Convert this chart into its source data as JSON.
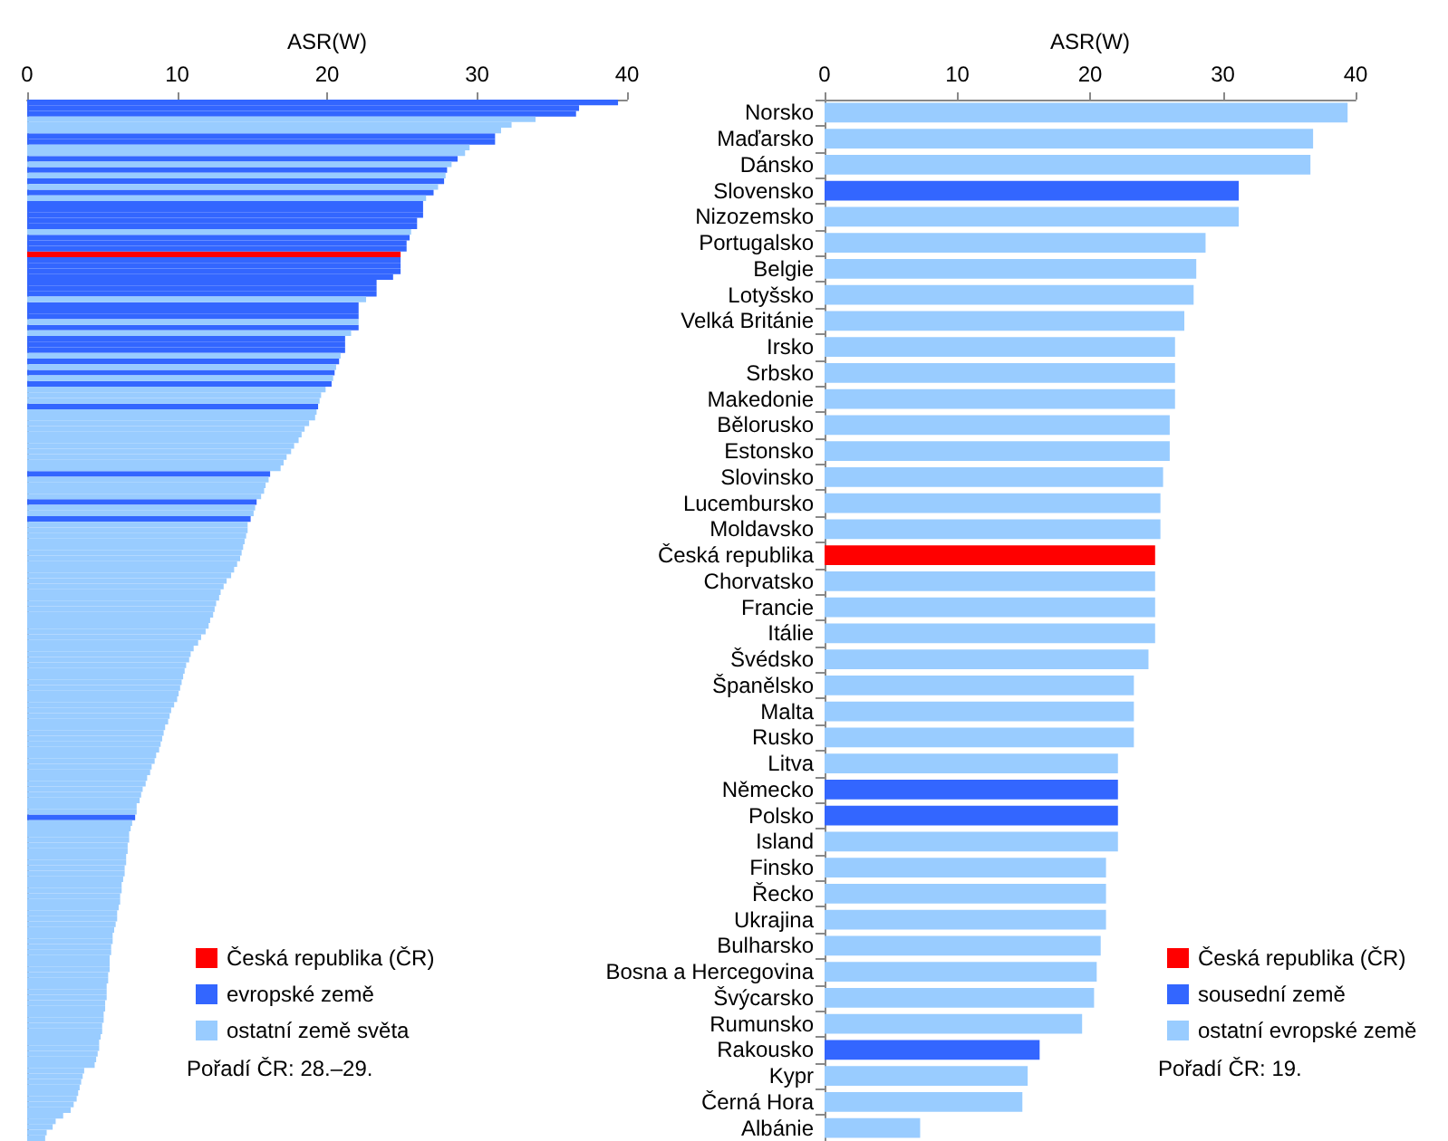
{
  "chart_data": [
    {
      "type": "bar",
      "orientation": "horizontal",
      "xlabel": "ASR(W)",
      "xlim": [
        0,
        40
      ],
      "xticks": [
        0,
        10,
        20,
        30,
        40
      ],
      "tick_labels": "x",
      "legend": "bottom",
      "categories": [
        null,
        null,
        null,
        null,
        null,
        null,
        null,
        null,
        null,
        null,
        null,
        null,
        null,
        null,
        null,
        null,
        null,
        null,
        null,
        null,
        null,
        null,
        null,
        null,
        null,
        null,
        null,
        null,
        null,
        null,
        null,
        null,
        null,
        null,
        null,
        null,
        null,
        null,
        null,
        null,
        null,
        null,
        null,
        null,
        null,
        null,
        null,
        null,
        null,
        null,
        null,
        null,
        null,
        null,
        null,
        null,
        null,
        null,
        null,
        null,
        null,
        null,
        null,
        null,
        null,
        null,
        null,
        null,
        null,
        null,
        null,
        null,
        null,
        null,
        null,
        null,
        null,
        null,
        null,
        null,
        null,
        null,
        null,
        null,
        null,
        null,
        null,
        null,
        null,
        null,
        null,
        null,
        null,
        null,
        null,
        null,
        null,
        null,
        null,
        null,
        null,
        null,
        null,
        null,
        null,
        null,
        null,
        null,
        null,
        null,
        null,
        null,
        null,
        null,
        null,
        null,
        null,
        null,
        null,
        null,
        null,
        null,
        null,
        null,
        null,
        null,
        null,
        null,
        null,
        null,
        null,
        null,
        null,
        null,
        null,
        null,
        null,
        null,
        null,
        null,
        null,
        null,
        null,
        null,
        null,
        null,
        null,
        null,
        null,
        null,
        null,
        null,
        null,
        null,
        null,
        null,
        null,
        null,
        null,
        null,
        null,
        null,
        null,
        null,
        null,
        null,
        null,
        null,
        null,
        null,
        null,
        null,
        null,
        null,
        null,
        null,
        null,
        null,
        null,
        null,
        null,
        null,
        null,
        null,
        null
      ],
      "series": [
        {
          "name": "Česká republika (ČR)",
          "color": "#ff0000",
          "values": [
            null,
            null,
            null,
            null,
            null,
            null,
            null,
            null,
            null,
            null,
            null,
            null,
            null,
            null,
            null,
            null,
            null,
            null,
            null,
            null,
            null,
            null,
            null,
            null,
            null,
            null,
            null,
            24.9,
            null,
            null,
            null,
            null,
            null,
            null,
            null,
            null,
            null,
            null,
            null,
            null,
            null,
            null,
            null,
            null,
            null,
            null,
            null,
            null,
            null,
            null,
            null,
            null,
            null,
            null,
            null,
            null,
            null,
            null,
            null,
            null,
            null,
            null,
            null,
            null,
            null,
            null,
            null,
            null,
            null,
            null,
            null,
            null,
            null,
            null,
            null,
            null,
            null,
            null,
            null,
            null,
            null,
            null,
            null,
            null,
            null,
            null,
            null,
            null,
            null,
            null,
            null,
            null,
            null,
            null,
            null,
            null,
            null,
            null,
            null,
            null,
            null,
            null,
            null,
            null,
            null,
            null,
            null,
            null,
            null,
            null,
            null,
            null,
            null,
            null,
            null,
            null,
            null,
            null,
            null,
            null,
            null,
            null,
            null,
            null,
            null,
            null,
            null,
            null,
            null,
            null,
            null,
            null,
            null,
            null,
            null,
            null,
            null,
            null,
            null,
            null,
            null,
            null,
            null,
            null,
            null,
            null,
            null,
            null,
            null,
            null,
            null,
            null,
            null,
            null,
            null,
            null,
            null,
            null,
            null,
            null,
            null,
            null,
            null,
            null,
            null,
            null,
            null,
            null,
            null,
            null,
            null,
            null,
            null,
            null,
            null,
            null,
            null,
            null,
            null,
            null,
            null,
            null,
            null,
            null,
            null
          ]
        },
        {
          "name": "evropské země",
          "color": "#3366ff",
          "values": [
            39.4,
            36.8,
            36.6,
            null,
            null,
            null,
            31.2,
            31.2,
            null,
            null,
            28.7,
            null,
            28.0,
            null,
            27.8,
            null,
            27.1,
            null,
            26.4,
            26.4,
            26.4,
            26.0,
            26.0,
            null,
            25.5,
            25.3,
            25.3,
            null,
            24.9,
            24.9,
            24.9,
            24.4,
            23.3,
            23.3,
            23.3,
            null,
            22.1,
            22.1,
            22.1,
            null,
            22.1,
            null,
            21.2,
            21.2,
            21.2,
            null,
            20.8,
            null,
            20.5,
            null,
            20.3,
            null,
            null,
            null,
            19.4,
            null,
            null,
            null,
            null,
            null,
            null,
            null,
            null,
            null,
            null,
            null,
            16.2,
            null,
            null,
            null,
            null,
            15.3,
            null,
            null,
            14.9,
            null,
            null,
            null,
            null,
            null,
            null,
            null,
            null,
            null,
            null,
            null,
            null,
            null,
            null,
            null,
            null,
            null,
            null,
            null,
            null,
            null,
            null,
            null,
            null,
            null,
            null,
            null,
            null,
            null,
            null,
            null,
            null,
            null,
            null,
            null,
            null,
            null,
            null,
            null,
            null,
            null,
            null,
            null,
            null,
            null,
            null,
            null,
            null,
            null,
            null,
            null,
            null,
            7.2,
            null,
            null,
            null,
            null,
            null,
            null,
            null,
            null,
            null,
            null,
            null,
            null,
            null,
            null,
            null,
            null,
            null,
            null,
            null,
            null,
            null,
            null,
            null,
            null,
            null,
            null,
            null,
            null,
            null,
            null,
            null,
            null,
            null,
            null,
            null,
            null,
            null,
            null,
            null,
            null,
            null,
            null,
            null,
            null,
            null,
            null,
            null,
            null,
            null,
            null,
            null,
            null,
            null,
            null,
            null,
            null,
            null
          ]
        },
        {
          "name": "ostatní země světa",
          "color": "#99ccff",
          "values": [
            null,
            null,
            null,
            33.9,
            32.3,
            31.6,
            null,
            null,
            29.5,
            29.2,
            null,
            28.3,
            null,
            27.9,
            null,
            27.4,
            null,
            26.6,
            null,
            null,
            null,
            null,
            null,
            25.6,
            null,
            null,
            null,
            null,
            null,
            null,
            null,
            null,
            null,
            null,
            null,
            22.6,
            null,
            null,
            null,
            22.1,
            null,
            21.6,
            null,
            null,
            null,
            20.9,
            null,
            20.6,
            null,
            20.4,
            null,
            19.9,
            19.6,
            19.5,
            null,
            19.3,
            19.2,
            18.8,
            18.5,
            18.3,
            18.1,
            17.8,
            17.6,
            17.3,
            17.1,
            16.9,
            null,
            16.1,
            15.9,
            15.8,
            15.6,
            null,
            15.2,
            15.1,
            null,
            14.7,
            14.7,
            14.6,
            14.5,
            14.4,
            14.3,
            14.2,
            14.0,
            13.8,
            13.6,
            13.3,
            13.1,
            12.9,
            12.8,
            12.6,
            12.5,
            12.4,
            12.2,
            12.1,
            11.9,
            11.6,
            11.4,
            11.1,
            10.9,
            10.8,
            10.6,
            10.5,
            10.4,
            10.3,
            10.2,
            10.1,
            10.0,
            9.8,
            9.6,
            9.5,
            9.4,
            9.2,
            9.1,
            9.0,
            8.9,
            8.8,
            8.6,
            8.5,
            8.3,
            8.2,
            8.0,
            7.9,
            7.7,
            7.6,
            7.5,
            7.3,
            7.3,
            null,
            7.0,
            6.9,
            6.8,
            6.8,
            6.7,
            6.7,
            6.6,
            6.6,
            6.5,
            6.5,
            6.4,
            6.3,
            6.3,
            6.2,
            6.2,
            6.1,
            6.0,
            6.0,
            5.9,
            5.8,
            5.7,
            5.7,
            5.6,
            5.6,
            5.5,
            5.5,
            5.5,
            5.4,
            5.4,
            5.3,
            5.3,
            5.3,
            5.2,
            5.2,
            5.1,
            5.1,
            5.0,
            5.0,
            4.9,
            4.8,
            4.8,
            4.7,
            4.6,
            4.5,
            3.8,
            3.7,
            3.6,
            3.5,
            3.4,
            3.3,
            3.1,
            2.9,
            2.4,
            1.9,
            1.7,
            1.3,
            1.2
          ]
        }
      ],
      "annotations": [
        "Pořadí ČR: 28.–29."
      ]
    },
    {
      "type": "bar",
      "orientation": "horizontal",
      "xlabel": "ASR(W)",
      "xlim": [
        0,
        40
      ],
      "xticks": [
        0,
        10,
        20,
        30,
        40
      ],
      "legend": "bottom right",
      "categories": [
        "Norsko",
        "Maďarsko",
        "Dánsko",
        "Slovensko",
        "Nizozemsko",
        "Portugalsko",
        "Belgie",
        "Lotyšsko",
        "Velká Británie",
        "Irsko",
        "Srbsko",
        "Makedonie",
        "Bělorusko",
        "Estonsko",
        "Slovinsko",
        "Lucembursko",
        "Moldavsko",
        "Česká republika",
        "Chorvatsko",
        "Francie",
        "Itálie",
        "Švédsko",
        "Španělsko",
        "Malta",
        "Rusko",
        "Litva",
        "Německo",
        "Polsko",
        "Island",
        "Finsko",
        "Řecko",
        "Ukrajina",
        "Bulharsko",
        "Bosna a Hercegovina",
        "Švýcarsko",
        "Rumunsko",
        "Rakousko",
        "Kypr",
        "Černá Hora",
        "Albánie"
      ],
      "series": [
        {
          "name": "Česká republika (ČR)",
          "color": "#ff0000",
          "values": [
            null,
            null,
            null,
            null,
            null,
            null,
            null,
            null,
            null,
            null,
            null,
            null,
            null,
            null,
            null,
            null,
            null,
            24.9,
            null,
            null,
            null,
            null,
            null,
            null,
            null,
            null,
            null,
            null,
            null,
            null,
            null,
            null,
            null,
            null,
            null,
            null,
            null,
            null,
            null,
            null
          ]
        },
        {
          "name": "sousední země",
          "color": "#3366ff",
          "values": [
            null,
            null,
            null,
            31.2,
            null,
            null,
            null,
            null,
            null,
            null,
            null,
            null,
            null,
            null,
            null,
            null,
            null,
            null,
            null,
            null,
            null,
            null,
            null,
            null,
            null,
            null,
            22.1,
            22.1,
            null,
            null,
            null,
            null,
            null,
            null,
            null,
            null,
            16.2,
            null,
            null,
            null
          ]
        },
        {
          "name": "ostatní evropské země",
          "color": "#99ccff",
          "values": [
            39.4,
            36.8,
            36.6,
            null,
            31.2,
            28.7,
            28.0,
            27.8,
            27.1,
            26.4,
            26.4,
            26.4,
            26.0,
            26.0,
            25.5,
            25.3,
            25.3,
            null,
            24.9,
            24.9,
            24.9,
            24.4,
            23.3,
            23.3,
            23.3,
            22.1,
            null,
            null,
            22.1,
            21.2,
            21.2,
            21.2,
            20.8,
            20.5,
            20.3,
            19.4,
            null,
            15.3,
            14.9,
            7.2
          ]
        }
      ],
      "annotations": [
        "Pořadí ČR: 19."
      ]
    }
  ]
}
